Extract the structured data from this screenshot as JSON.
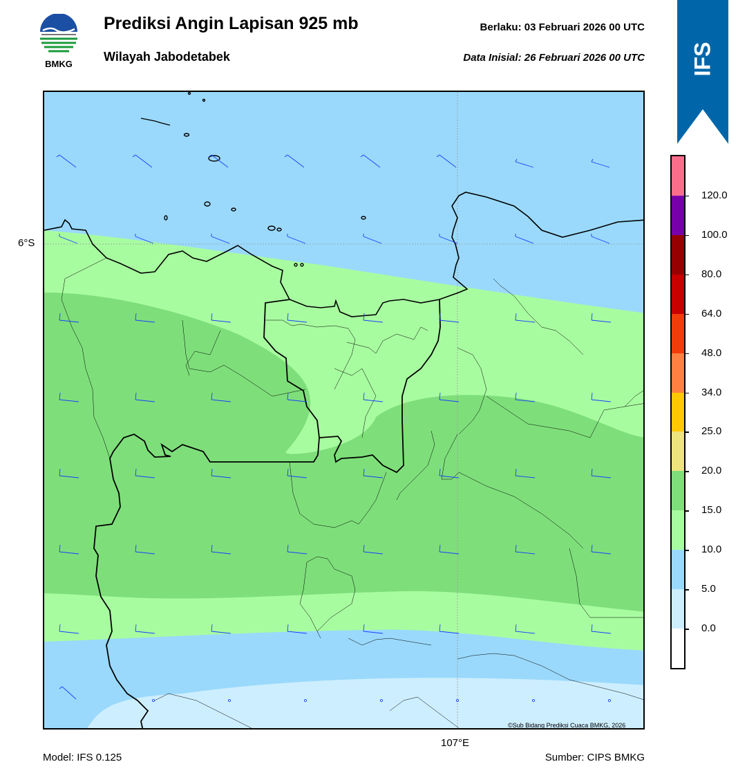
{
  "header": {
    "title": "Prediksi Angin Lapisan 925 mb",
    "subtitle": "Wilayah Jabodetabek",
    "valid_label": "Berlaku:  03 Februari 2026 00 UTC",
    "init_label": "Data Inisial:  26 Februari 2026 00 UTC"
  },
  "logo": {
    "text": "BMKG",
    "icon": "bmkg-logo"
  },
  "banner": {
    "text": "IFS",
    "color": "#0066a9"
  },
  "map": {
    "lat_label": "6°S",
    "lon_label": "107°E",
    "copyright": "©Sub Bidang Prediksi Cuaca BMKG, 2026",
    "colors": {
      "lt5": "#cdeefe",
      "5to10": "#9ad9fb",
      "10to15": "#a8fca0",
      "15to20": "#7edf7a"
    }
  },
  "colorbar": {
    "ticks": [
      "0.0",
      "5.0",
      "10.0",
      "15.0",
      "20.0",
      "25.0",
      "34.0",
      "48.0",
      "64.0",
      "80.0",
      "100.0",
      "120.0"
    ],
    "colors": [
      "#ffffff",
      "#cdeefe",
      "#9ad9fb",
      "#a8fca0",
      "#7edf7a",
      "#eee47d",
      "#ffc800",
      "#ff8040",
      "#f23c0a",
      "#c80000",
      "#960000",
      "#7800aa",
      "#fa6e8c"
    ]
  },
  "footer": {
    "model": "Model: IFS 0.125",
    "source": "Sumber: CIPS BMKG"
  }
}
